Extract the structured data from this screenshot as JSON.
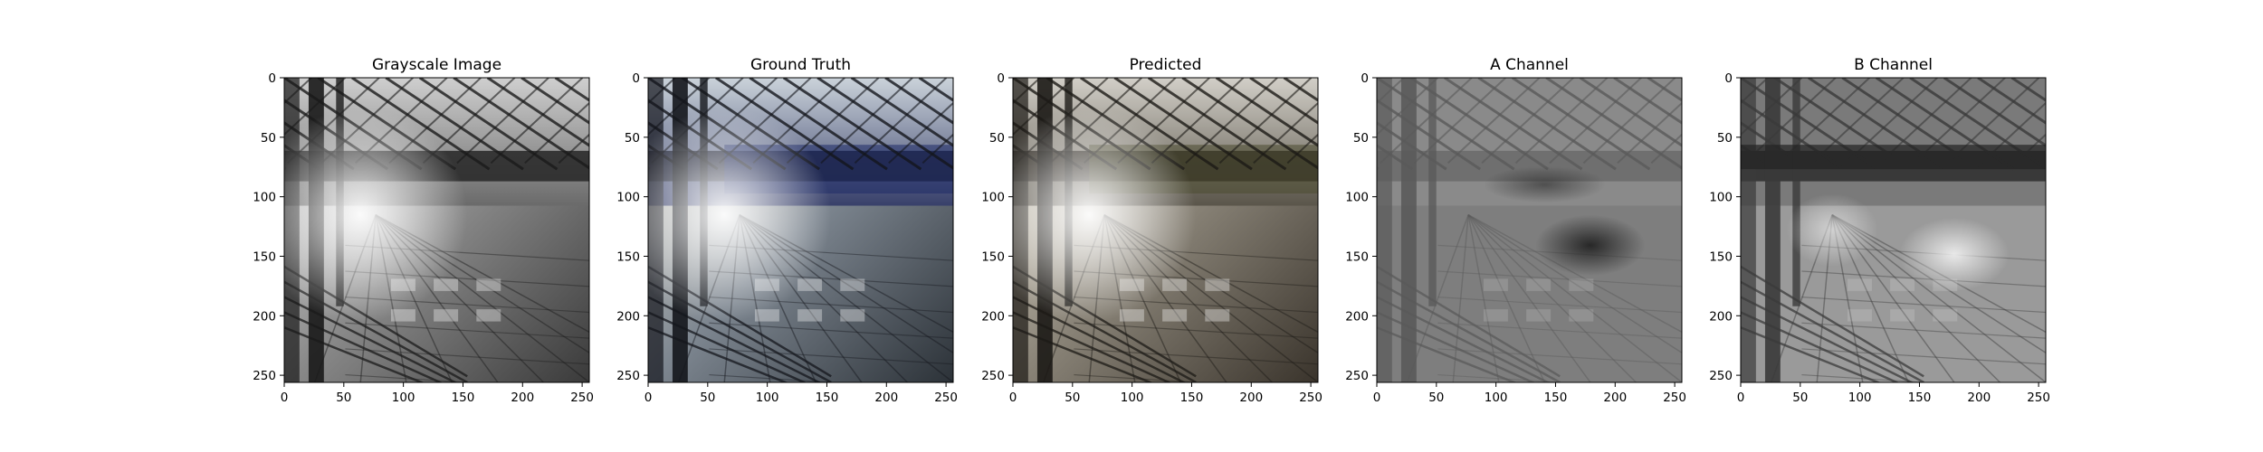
{
  "panels": [
    {
      "title": "Grayscale Image",
      "render": "grayscale",
      "x_ticks": [
        "0",
        "50",
        "100",
        "150",
        "200",
        "250"
      ],
      "y_ticks": [
        "0",
        "50",
        "100",
        "150",
        "200",
        "250"
      ]
    },
    {
      "title": "Ground Truth",
      "render": "color",
      "x_ticks": [
        "0",
        "50",
        "100",
        "150",
        "200",
        "250"
      ],
      "y_ticks": [
        "0",
        "50",
        "100",
        "150",
        "200",
        "250"
      ]
    },
    {
      "title": "Predicted",
      "render": "predicted",
      "x_ticks": [
        "0",
        "50",
        "100",
        "150",
        "200",
        "250"
      ],
      "y_ticks": [
        "0",
        "50",
        "100",
        "150",
        "200",
        "250"
      ]
    },
    {
      "title": "A Channel",
      "render": "a-channel",
      "x_ticks": [
        "0",
        "50",
        "100",
        "150",
        "200",
        "250"
      ],
      "y_ticks": [
        "0",
        "50",
        "100",
        "150",
        "200",
        "250"
      ]
    },
    {
      "title": "B Channel",
      "render": "b-channel",
      "x_ticks": [
        "0",
        "50",
        "100",
        "150",
        "200",
        "250"
      ],
      "y_ticks": [
        "0",
        "50",
        "100",
        "150",
        "200",
        "250"
      ]
    }
  ],
  "axis": {
    "x_range": [
      0,
      256
    ],
    "y_range": [
      0,
      256
    ],
    "y_inverted": true
  }
}
